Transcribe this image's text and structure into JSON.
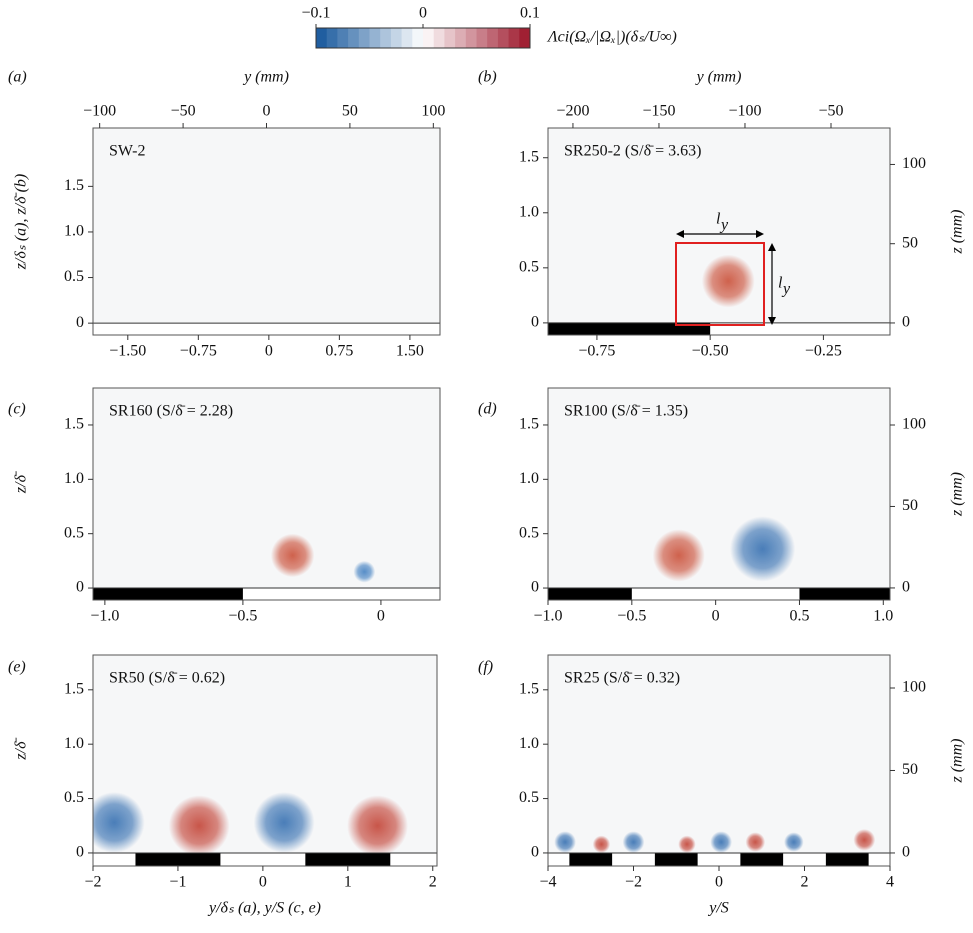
{
  "colorbar": {
    "lim": [
      -0.1,
      0.1
    ],
    "ticks": [
      {
        "value": -0.1,
        "label": "−0.1"
      },
      0,
      0.1
    ],
    "label": "Λci(Ωₓ/|Ωₓ|)(δₛ/U∞)"
  },
  "chart_data": [
    {
      "type": "contour",
      "label": "(a)",
      "title": "SW-2",
      "xlim": [
        -1.87,
        1.82
      ],
      "xticks": [
        {
          "value": -1.5,
          "label": "−1.50"
        },
        {
          "value": -0.75,
          "label": "−0.75"
        },
        0,
        0.75,
        {
          "value": 1.5,
          "label": "1.50"
        }
      ],
      "x2lim": [
        -104,
        104
      ],
      "x2ticks": [
        {
          "value": -100,
          "label": "−100"
        },
        {
          "value": -50,
          "label": "−50"
        },
        0,
        50,
        100
      ],
      "x2label": "y (mm)",
      "ylim": [
        -0.13,
        2.14
      ],
      "yticks": [
        0,
        0.5,
        {
          "value": 1,
          "label": "1.0"
        },
        1.5
      ],
      "ylabel": "z/δₛ (a), z/δ̄ (b)",
      "strips": [],
      "vortices": []
    },
    {
      "type": "contour",
      "label": "(b)",
      "title": "SR250-2 (S/δ̄ = 3.63)",
      "xlim": [
        -0.858,
        -0.103
      ],
      "xticks": [
        {
          "value": -0.75,
          "label": "−0.75"
        },
        {
          "value": -0.5,
          "label": "−0.50"
        },
        {
          "value": -0.25,
          "label": "−0.25"
        }
      ],
      "x2lim": [
        -214.5,
        -15.7
      ],
      "x2ticks": [
        {
          "value": -200,
          "label": "−200"
        },
        {
          "value": -150,
          "label": "−150"
        },
        {
          "value": -100,
          "label": "−100"
        },
        {
          "value": -50,
          "label": "−50"
        }
      ],
      "x2label": "y (mm)",
      "ylim": [
        -0.11,
        1.77
      ],
      "yticks": [
        0,
        0.5,
        {
          "value": 1,
          "label": "1.0"
        },
        1.5
      ],
      "y2lim": [
        -7.6,
        123
      ],
      "y2ticks": [
        0,
        50,
        100
      ],
      "y2label": "z (mm)",
      "strips": [
        [
          -0.858,
          -0.5
        ]
      ],
      "vortices": [
        {
          "x": -0.46,
          "z": 0.38,
          "r": 0.24,
          "color": "#c8472f"
        }
      ],
      "annotations": [
        {
          "text": "l",
          "sub": "y"
        },
        {
          "text": "l",
          "sub": "y"
        }
      ]
    },
    {
      "type": "contour",
      "label": "(c)",
      "title": "SR160 (S/δ̄ = 2.28)",
      "xlim": [
        -1.043,
        0.214
      ],
      "xticks": [
        {
          "value": -1,
          "label": "−1.0"
        },
        {
          "value": -0.5,
          "label": "−0.5"
        },
        0
      ],
      "ylim": [
        -0.11,
        1.84
      ],
      "yticks": [
        0,
        0.5,
        {
          "value": 1,
          "label": "1.0"
        },
        1.5
      ],
      "ylabel": "z/δ̄",
      "strips": [
        [
          -1.043,
          -0.5
        ]
      ],
      "vortices": [
        {
          "x": -0.32,
          "z": 0.3,
          "r": 0.2,
          "color": "#c8472f"
        },
        {
          "x": -0.06,
          "z": 0.15,
          "r": 0.1,
          "color": "#3b7bbf"
        }
      ]
    },
    {
      "type": "contour",
      "label": "(d)",
      "title": "SR100 (S/δ̄ = 1.35)",
      "xlim": [
        -1,
        1.04
      ],
      "xticks": [
        {
          "value": -1,
          "label": "−1.0"
        },
        {
          "value": -0.5,
          "label": "−0.5"
        },
        0,
        0.5,
        {
          "value": 1,
          "label": "1.0"
        }
      ],
      "ylim": [
        -0.11,
        1.84
      ],
      "yticks": [
        0,
        0.5,
        {
          "value": 1,
          "label": "1.0"
        },
        1.5
      ],
      "y2lim": [
        -7.4,
        122.7
      ],
      "y2ticks": [
        0,
        50,
        100
      ],
      "y2label": "z (mm)",
      "strips": [
        [
          -1,
          -0.5
        ],
        [
          0.5,
          1.04
        ]
      ],
      "vortices": [
        {
          "x": -0.22,
          "z": 0.3,
          "r": 0.24,
          "color": "#c8472f"
        },
        {
          "x": 0.28,
          "z": 0.36,
          "r": 0.3,
          "color": "#2b68ad"
        }
      ]
    },
    {
      "type": "contour",
      "label": "(e)",
      "title": "SR50 (S/δ̄ = 0.62)",
      "xlim": [
        -2,
        2.05
      ],
      "xticks": [
        {
          "value": -2,
          "label": "−2"
        },
        {
          "value": -1,
          "label": "−1"
        },
        0,
        1,
        2
      ],
      "ylim": [
        -0.12,
        1.82
      ],
      "yticks": [
        0,
        0.5,
        {
          "value": 1,
          "label": "1.0"
        },
        1.5
      ],
      "ylabel": "z/δ̄",
      "xlabel": "y/δₛ (a), y/S (c, e)",
      "strips": [
        [
          -1.5,
          -0.5
        ],
        [
          0.5,
          1.5
        ]
      ],
      "vortices": [
        {
          "x": -1.75,
          "z": 0.28,
          "r": 0.28,
          "color": "#2b68ad"
        },
        {
          "x": -0.75,
          "z": 0.25,
          "r": 0.28,
          "color": "#c0392b"
        },
        {
          "x": 0.25,
          "z": 0.28,
          "r": 0.28,
          "color": "#2b68ad"
        },
        {
          "x": 1.35,
          "z": 0.25,
          "r": 0.28,
          "color": "#c0392b"
        }
      ]
    },
    {
      "type": "contour",
      "label": "(f)",
      "title": "SR25 (S/δ̄ = 0.32)",
      "xlim": [
        -4,
        4
      ],
      "xticks": [
        {
          "value": -4,
          "label": "−4"
        },
        {
          "value": -2,
          "label": "−2"
        },
        0,
        2,
        4
      ],
      "ylim": [
        -0.12,
        1.82
      ],
      "yticks": [
        0,
        0.5,
        {
          "value": 1,
          "label": "1.0"
        },
        1.5
      ],
      "y2lim": [
        -7.9,
        120
      ],
      "y2ticks": [
        0,
        50,
        100
      ],
      "y2label": "z (mm)",
      "xlabel": "y/S",
      "strips": [
        [
          -3.5,
          -2.5
        ],
        [
          -1.5,
          -0.5
        ],
        [
          0.5,
          1.5
        ],
        [
          2.5,
          3.5
        ]
      ],
      "vortices": [
        {
          "x": -3.6,
          "z": 0.1,
          "r": 0.1,
          "color": "#2b68ad"
        },
        {
          "x": -2.75,
          "z": 0.08,
          "r": 0.08,
          "color": "#c0392b"
        },
        {
          "x": -2.0,
          "z": 0.1,
          "r": 0.1,
          "color": "#2b68ad"
        },
        {
          "x": -0.75,
          "z": 0.08,
          "r": 0.08,
          "color": "#c0392b"
        },
        {
          "x": 0.05,
          "z": 0.1,
          "r": 0.1,
          "color": "#2b68ad"
        },
        {
          "x": 0.85,
          "z": 0.1,
          "r": 0.09,
          "color": "#c0392b"
        },
        {
          "x": 1.75,
          "z": 0.1,
          "r": 0.09,
          "color": "#2b68ad"
        },
        {
          "x": 3.4,
          "z": 0.12,
          "r": 0.1,
          "color": "#c0392b"
        }
      ]
    }
  ]
}
